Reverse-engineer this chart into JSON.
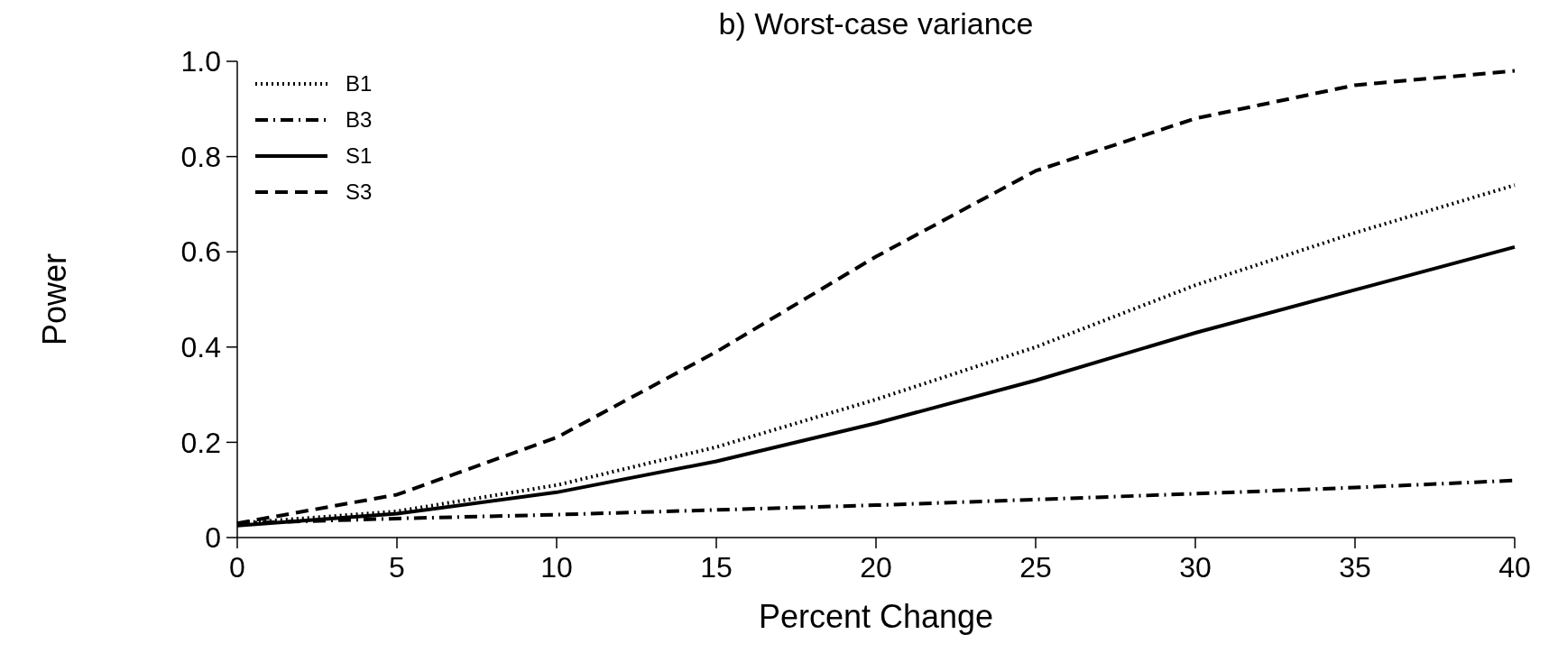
{
  "chart_data": {
    "type": "line",
    "title": "b) Worst-case variance",
    "xlabel": "Percent Change",
    "ylabel": "Power",
    "x": [
      0,
      5,
      10,
      15,
      20,
      25,
      30,
      35,
      40
    ],
    "series": [
      {
        "name": "B1",
        "color": "#000000",
        "line_style": "dotted",
        "values": [
          0.03,
          0.055,
          0.11,
          0.19,
          0.29,
          0.4,
          0.53,
          0.64,
          0.74
        ]
      },
      {
        "name": "B3",
        "color": "#000000",
        "line_style": "dashdot",
        "values": [
          0.03,
          0.04,
          0.048,
          0.058,
          0.068,
          0.08,
          0.092,
          0.105,
          0.12
        ]
      },
      {
        "name": "S1",
        "color": "#000000",
        "line_style": "solid",
        "values": [
          0.025,
          0.05,
          0.095,
          0.16,
          0.24,
          0.33,
          0.43,
          0.52,
          0.61
        ]
      },
      {
        "name": "S3",
        "color": "#000000",
        "line_style": "dashed",
        "values": [
          0.03,
          0.09,
          0.21,
          0.39,
          0.59,
          0.77,
          0.88,
          0.95,
          0.98
        ]
      }
    ],
    "xlim": [
      0,
      40
    ],
    "xticks": [
      0,
      5,
      10,
      15,
      20,
      25,
      30,
      35,
      40
    ],
    "ylim": [
      0,
      1
    ],
    "yticks": [
      0,
      0.2,
      0.4,
      0.6,
      0.8,
      {
        "value": 1,
        "label": "1.0"
      }
    ],
    "legend": "top left",
    "grid": false,
    "marker": "none"
  }
}
